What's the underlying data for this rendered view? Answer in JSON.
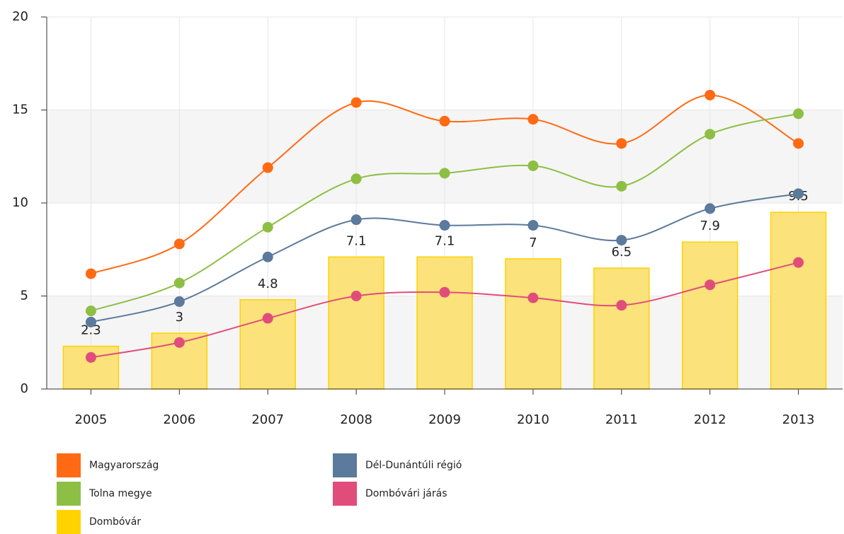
{
  "chart_data": {
    "type": "bar",
    "categories": [
      "2005",
      "2006",
      "2007",
      "2008",
      "2009",
      "2010",
      "2011",
      "2012",
      "2013"
    ],
    "ylim": [
      0,
      20
    ],
    "yticks": [
      0,
      5,
      10,
      15,
      20
    ],
    "grid": true,
    "legend": "bottom",
    "series": [
      {
        "name": "Magyarország",
        "type": "line",
        "color": "#ff6a13",
        "values": [
          6.2,
          7.8,
          11.9,
          15.4,
          14.4,
          14.5,
          13.2,
          15.8,
          13.2
        ]
      },
      {
        "name": "Tolna megye",
        "type": "line",
        "color": "#8dbf44",
        "values": [
          4.2,
          5.7,
          8.7,
          11.3,
          11.6,
          12.0,
          10.9,
          13.7,
          14.8
        ]
      },
      {
        "name": "Dombóvár",
        "type": "bar",
        "color": "#ffd200",
        "values": [
          2.3,
          3,
          4.8,
          7.1,
          7.1,
          7,
          6.5,
          7.9,
          9.5
        ]
      },
      {
        "name": "Dél-Dunántúli régió",
        "type": "line",
        "color": "#5b7a9c",
        "values": [
          3.6,
          4.7,
          7.1,
          9.1,
          8.8,
          8.8,
          8.0,
          9.7,
          10.5
        ]
      },
      {
        "name": "Dombóvári járás",
        "type": "line",
        "color": "#e14d7b",
        "values": [
          1.7,
          2.5,
          3.8,
          5.0,
          5.2,
          4.9,
          4.5,
          5.6,
          6.8
        ]
      }
    ]
  }
}
